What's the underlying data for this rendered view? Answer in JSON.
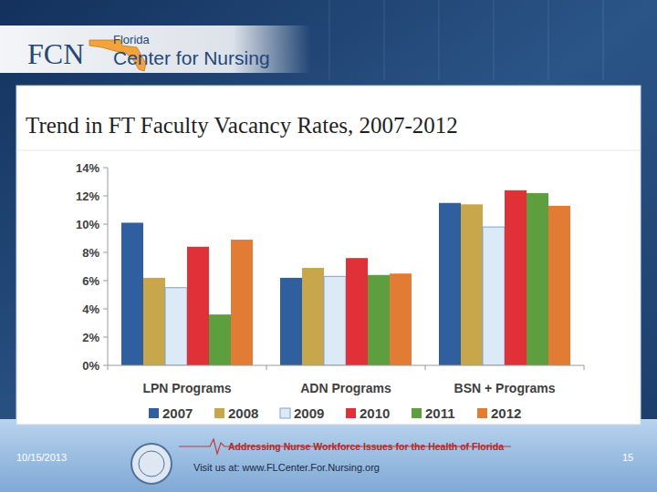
{
  "header": {
    "logo": "FCN",
    "org_line1": "Florida",
    "org_line2": "Center for Nursing"
  },
  "chart_data": {
    "type": "bar",
    "title": "Trend in FT Faculty Vacancy Rates, 2007-2012",
    "categories": [
      "LPN Programs",
      "ADN Programs",
      "BSN + Programs"
    ],
    "series": [
      {
        "name": "2007",
        "color": "#2f5f9e",
        "values": [
          10.1,
          6.2,
          11.5
        ]
      },
      {
        "name": "2008",
        "color": "#c8a64b",
        "values": [
          6.2,
          6.9,
          11.4
        ]
      },
      {
        "name": "2009",
        "color": "#dce9f7",
        "values": [
          5.5,
          6.3,
          9.8
        ]
      },
      {
        "name": "2010",
        "color": "#e03139",
        "values": [
          8.4,
          7.6,
          12.4
        ]
      },
      {
        "name": "2011",
        "color": "#5d9e3f",
        "values": [
          3.6,
          6.4,
          12.2
        ]
      },
      {
        "name": "2012",
        "color": "#e27b34",
        "values": [
          8.9,
          6.5,
          11.3
        ]
      }
    ],
    "ylim": [
      0,
      14
    ],
    "yticks": [
      {
        "value": 0,
        "label": "0%"
      },
      {
        "value": 2,
        "label": "2%"
      },
      {
        "value": 4,
        "label": "4%"
      },
      {
        "value": 6,
        "label": "6%"
      },
      {
        "value": 8,
        "label": "8%"
      },
      {
        "value": 10,
        "label": "10%"
      },
      {
        "value": 12,
        "label": "12%"
      },
      {
        "value": 14,
        "label": "14%"
      }
    ],
    "grid": false,
    "legend": "bottom"
  },
  "footer": {
    "date": "10/15/2013",
    "tagline": "Addressing Nurse Workforce Issues for the Health of Florida",
    "website": "Visit us at: www.FLCenter.For.Nursing.org",
    "page": "15"
  }
}
